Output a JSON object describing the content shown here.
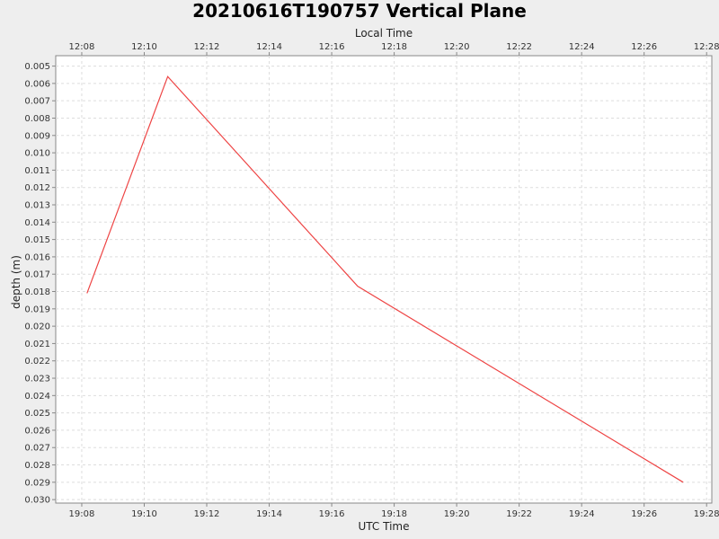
{
  "chart_data": {
    "type": "line",
    "title": "20210616T190757 Vertical Plane",
    "xlabel": "UTC Time",
    "x2label": "Local Time",
    "ylabel": "depth (m)",
    "y_inverted": true,
    "grid": true,
    "legend": "none",
    "xlim": [
      "19:07:10",
      "19:28:10"
    ],
    "ylim": [
      0.0044,
      0.0302
    ],
    "x_ticks": [
      "19:08",
      "19:10",
      "19:12",
      "19:14",
      "19:16",
      "19:18",
      "19:20",
      "19:22",
      "19:24",
      "19:26",
      "19:28"
    ],
    "x2_ticks": [
      "12:08",
      "12:10",
      "12:12",
      "12:14",
      "12:16",
      "12:18",
      "12:20",
      "12:22",
      "12:24",
      "12:26",
      "12:28"
    ],
    "y_ticks": [
      "0.005",
      "0.006",
      "0.007",
      "0.008",
      "0.009",
      "0.010",
      "0.011",
      "0.012",
      "0.013",
      "0.014",
      "0.015",
      "0.016",
      "0.017",
      "0.018",
      "0.019",
      "0.020",
      "0.021",
      "0.022",
      "0.023",
      "0.024",
      "0.025",
      "0.026",
      "0.027",
      "0.028",
      "0.029",
      "0.030"
    ],
    "series": [
      {
        "color": "#ee4444",
        "x": [
          "19:08:10",
          "19:10:45",
          "19:16:50",
          "19:27:15"
        ],
        "y": [
          0.0181,
          0.0056,
          0.0177,
          0.029
        ]
      }
    ]
  },
  "colors": {
    "background": "#eeeeee",
    "plot_background": "#ffffff",
    "grid": "#dddddd",
    "series": "#ee4444"
  }
}
